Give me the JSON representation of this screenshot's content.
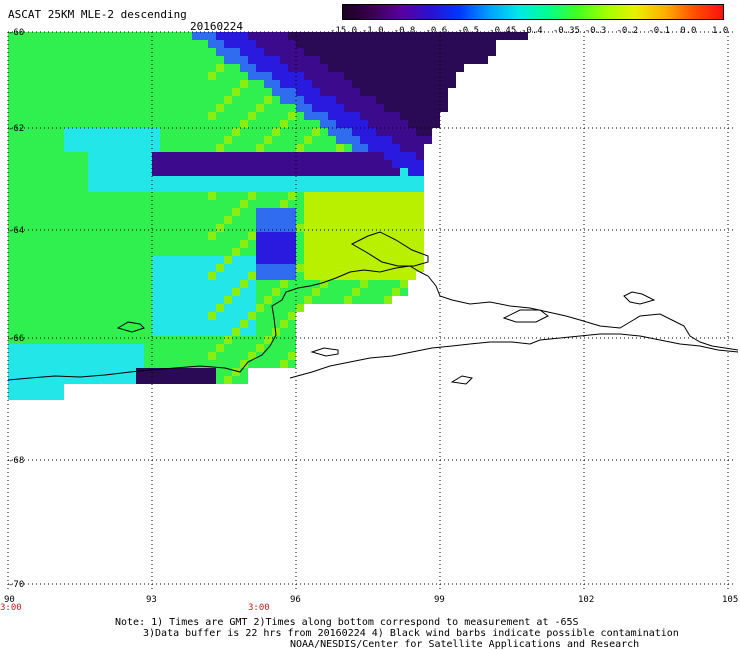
{
  "header": {
    "title": "ASCAT 25KM MLE-2 descending",
    "date": "20160224"
  },
  "colorbar": {
    "labels": [
      "-15.0",
      "-1.0",
      "-0.8",
      "-0.6",
      "-0.5",
      "-0.45",
      "-0.4",
      "-0.35",
      "-0.3",
      "-0.2",
      "-0.1",
      "0.0",
      "1.0"
    ],
    "colors": [
      "#1a0022",
      "#3a0050",
      "#5a00a0",
      "#2a10d0",
      "#0038ff",
      "#00a0ff",
      "#00e8e8",
      "#00ff90",
      "#40ff20",
      "#a0ff00",
      "#e8f000",
      "#ffb000",
      "#ff5000",
      "#ff1010"
    ]
  },
  "axes": {
    "lat_ticks": [
      "-60",
      "-62",
      "-64",
      "-66",
      "-68",
      "-70"
    ],
    "lon_ticks": [
      "90",
      "93",
      "96",
      "99",
      "102",
      "105"
    ],
    "time_labels": [
      "3:00",
      "3:00"
    ]
  },
  "footer": {
    "line1": "Note: 1) Times are GMT 2)Times along bottom correspond to measurement at -65S",
    "line2": "3)Data buffer is 22 hrs from 20160224 4) Black wind barbs indicate possible contamination",
    "line3": "NOAA/NESDIS/Center for Satellite Applications and Research"
  },
  "map": {
    "lon_range": [
      90,
      105
    ],
    "lat_range": [
      -70,
      -60
    ],
    "palette": {
      "deep_purple": "#2a0a55",
      "purple": "#3c0a8c",
      "blue": "#2a1ae0",
      "mid_blue": "#2f6cf0",
      "cyan": "#22e6e8",
      "teal": "#20f5b0",
      "green": "#30f050",
      "lime": "#8aef10",
      "yellow_green": "#b8f000"
    }
  }
}
